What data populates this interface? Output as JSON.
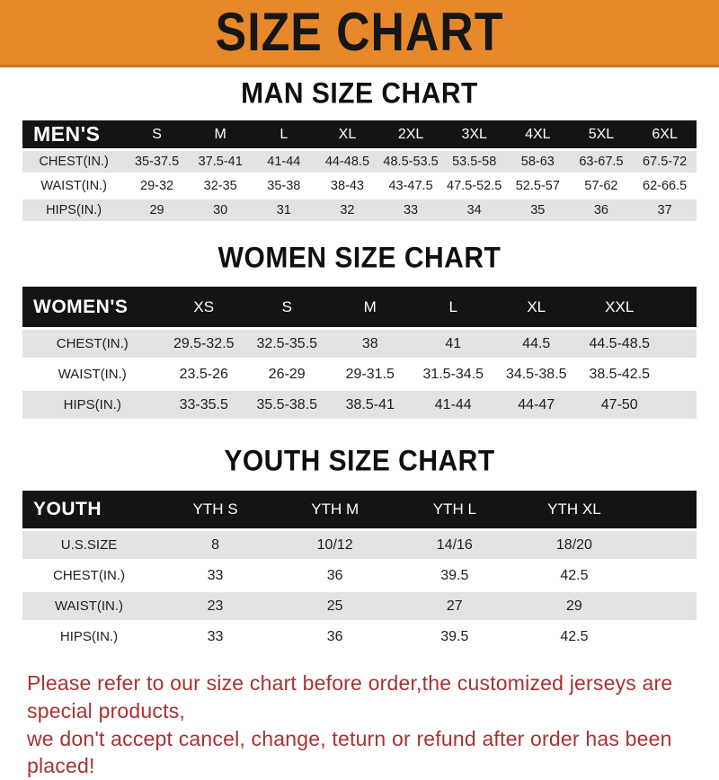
{
  "page": {
    "banner_title": "SIZE CHART",
    "footer_line1": "Please refer to our size chart before order,the customized jerseys are special products,",
    "footer_line2": "we don't accept cancel, change, teturn or refund after order has been placed!"
  },
  "colors": {
    "banner_bg": "#e7892b",
    "header_bar_bg": "#141414",
    "row_alt_bg": "#e3e3e3",
    "notice_red": "#a93131"
  },
  "chart_data": [
    {
      "type": "table",
      "title": "MAN SIZE CHART",
      "corner_label": "MEN'S",
      "columns": [
        "S",
        "M",
        "L",
        "XL",
        "2XL",
        "3XL",
        "4XL",
        "5XL",
        "6XL"
      ],
      "rows": [
        {
          "label": "CHEST(IN.)",
          "values": [
            "35-37.5",
            "37.5-41",
            "41-44",
            "44-48.5",
            "48.5-53.5",
            "53.5-58",
            "58-63",
            "63-67.5",
            "67.5-72"
          ]
        },
        {
          "label": "WAIST(IN.)",
          "values": [
            "29-32",
            "32-35",
            "35-38",
            "38-43",
            "43-47.5",
            "47.5-52.5",
            "52.5-57",
            "57-62",
            "62-66.5"
          ]
        },
        {
          "label": "HIPS(IN.)",
          "values": [
            "29",
            "30",
            "31",
            "32",
            "33",
            "34",
            "35",
            "36",
            "37"
          ]
        }
      ]
    },
    {
      "type": "table",
      "title": "WOMEN SIZE CHART",
      "corner_label": "WOMEN'S",
      "columns": [
        "XS",
        "S",
        "M",
        "L",
        "XL",
        "XXL"
      ],
      "rows": [
        {
          "label": "CHEST(IN.)",
          "values": [
            "29.5-32.5",
            "32.5-35.5",
            "38",
            "41",
            "44.5",
            "44.5-48.5"
          ]
        },
        {
          "label": "WAIST(IN.)",
          "values": [
            "23.5-26",
            "26-29",
            "29-31.5",
            "31.5-34.5",
            "34.5-38.5",
            "38.5-42.5"
          ]
        },
        {
          "label": "HIPS(IN.)",
          "values": [
            "33-35.5",
            "35.5-38.5",
            "38.5-41",
            "41-44",
            "44-47",
            "47-50"
          ]
        }
      ]
    },
    {
      "type": "table",
      "title": "YOUTH SIZE CHART",
      "corner_label": "YOUTH",
      "columns": [
        "YTH S",
        "YTH M",
        "YTH L",
        "YTH XL"
      ],
      "rows": [
        {
          "label": "U.S.SIZE",
          "values": [
            "8",
            "10/12",
            "14/16",
            "18/20"
          ]
        },
        {
          "label": "CHEST(IN.)",
          "values": [
            "33",
            "36",
            "39.5",
            "42.5"
          ]
        },
        {
          "label": "WAIST(IN.)",
          "values": [
            "23",
            "25",
            "27",
            "29"
          ]
        },
        {
          "label": "HIPS(IN.)",
          "values": [
            "33",
            "36",
            "39.5",
            "42.5"
          ]
        }
      ]
    }
  ]
}
